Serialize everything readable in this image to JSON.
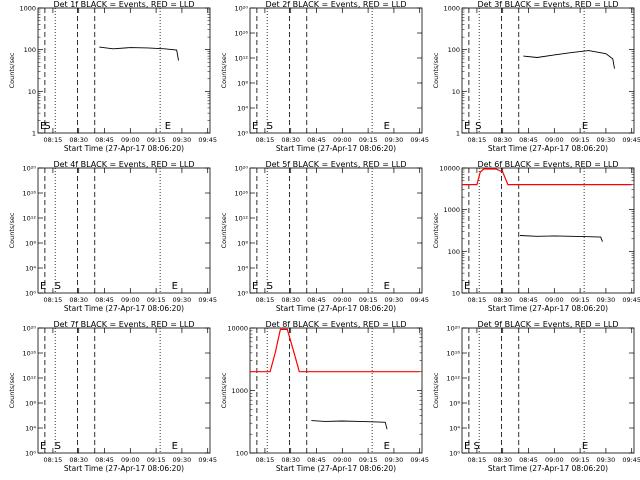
{
  "chart_data": [
    {
      "type": "line",
      "title": "Det 1f BLACK = Events, RED = LLD",
      "ylabel": "Counts/sec",
      "xlabel": "Start Time (27-Apr-17 08:06:20)",
      "x_ticks": [
        "08:15",
        "08:30",
        "08:45",
        "09:00",
        "09:15",
        "09:30",
        "09:45"
      ],
      "y_ticks": [
        "1",
        "10",
        "100",
        "1000"
      ],
      "ylim": [
        1,
        1000
      ],
      "markers": [
        {
          "label": "E",
          "x": "08:06"
        },
        {
          "label": "S",
          "x": "08:10"
        },
        {
          "label": "E",
          "x": "09:20"
        }
      ],
      "series": [
        {
          "color": "#000000",
          "x": [
            "08:42",
            "08:50",
            "09:00",
            "09:10",
            "09:20",
            "09:27",
            "09:28"
          ],
          "values": [
            115,
            105,
            112,
            110,
            105,
            98,
            55
          ]
        }
      ]
    },
    {
      "type": "line",
      "title": "Det 2f BLACK = Events, RED = LLD",
      "ylabel": "Counts/sec",
      "xlabel": "Start Time (27-Apr-17 08:06:20)",
      "x_ticks": [
        "08:15",
        "08:30",
        "08:45",
        "09:00",
        "09:15",
        "09:30",
        "09:45"
      ],
      "y_ticks": [
        "10⁰",
        "10⁴",
        "10⁸",
        "10¹²",
        "10¹⁶",
        "10²⁰"
      ],
      "markers": [
        {
          "label": "E",
          "x": "08:06"
        },
        {
          "label": "S",
          "x": "08:16"
        },
        {
          "label": "E",
          "x": "09:24"
        }
      ],
      "series": []
    },
    {
      "type": "line",
      "title": "Det 3f BLACK = Events, RED = LLD",
      "ylabel": "Counts/sec",
      "xlabel": "Start Time (27-Apr-17 08:06:20)",
      "x_ticks": [
        "08:15",
        "08:30",
        "08:45",
        "09:00",
        "09:15",
        "09:30",
        "09:45"
      ],
      "y_ticks": [
        "1",
        "10",
        "100",
        "1000"
      ],
      "ylim": [
        1,
        1000
      ],
      "markers": [
        {
          "label": "E",
          "x": "08:06"
        },
        {
          "label": "S",
          "x": "08:14"
        },
        {
          "label": "E",
          "x": "09:16"
        }
      ],
      "series": [
        {
          "color": "#000000",
          "x": [
            "08:42",
            "08:50",
            "09:00",
            "09:10",
            "09:20",
            "09:30",
            "09:34",
            "09:35"
          ],
          "values": [
            70,
            65,
            75,
            85,
            95,
            80,
            60,
            35
          ]
        }
      ]
    },
    {
      "type": "line",
      "title": "Det 4f BLACK = Events, RED = LLD",
      "ylabel": "Counts/sec",
      "xlabel": "Start Time (27-Apr-17 08:06:20)",
      "x_ticks": [
        "08:15",
        "08:30",
        "08:45",
        "09:00",
        "09:15",
        "09:30",
        "09:45"
      ],
      "y_ticks": [
        "10⁰",
        "10⁴",
        "10⁸",
        "10¹²",
        "10¹⁶",
        "10²⁰"
      ],
      "markers": [
        {
          "label": "E",
          "x": "08:06"
        },
        {
          "label": "S",
          "x": "08:16"
        },
        {
          "label": "E",
          "x": "09:24"
        }
      ],
      "series": []
    },
    {
      "type": "line",
      "title": "Det 5f BLACK = Events, RED = LLD",
      "ylabel": "Counts/sec",
      "xlabel": "Start Time (27-Apr-17 08:06:20)",
      "x_ticks": [
        "08:15",
        "08:30",
        "08:45",
        "09:00",
        "09:15",
        "09:30",
        "09:45"
      ],
      "y_ticks": [
        "10⁰",
        "10⁴",
        "10⁸",
        "10¹²",
        "10¹⁶",
        "10²⁰"
      ],
      "markers": [
        {
          "label": "E",
          "x": "08:06"
        },
        {
          "label": "S",
          "x": "08:16"
        },
        {
          "label": "E",
          "x": "09:24"
        }
      ],
      "series": []
    },
    {
      "type": "line",
      "title": "Det 6f BLACK = Events, RED = LLD",
      "ylabel": "Counts/sec",
      "xlabel": "Start Time (27-Apr-17 08:06:20)",
      "x_ticks": [
        "08:15",
        "08:30",
        "08:45",
        "09:00",
        "09:15",
        "09:30",
        "09:45"
      ],
      "y_ticks": [
        "10",
        "100",
        "1000",
        "10000"
      ],
      "ylim": [
        10,
        10000
      ],
      "markers": [
        {
          "label": "E",
          "x": "08:06"
        }
      ],
      "series": [
        {
          "color": "#ff0000",
          "x": [
            "08:06",
            "08:15",
            "08:17",
            "08:19",
            "08:22",
            "08:26",
            "08:30",
            "08:33",
            "09:45"
          ],
          "values": [
            4000,
            4000,
            8000,
            9500,
            9500,
            9500,
            8000,
            4000,
            4000
          ]
        },
        {
          "color": "#000000",
          "x": [
            "08:40",
            "08:50",
            "09:00",
            "09:10",
            "09:20",
            "09:27",
            "09:28"
          ],
          "values": [
            240,
            230,
            235,
            230,
            225,
            220,
            170
          ]
        }
      ]
    },
    {
      "type": "line",
      "title": "Det 7f BLACK = Events, RED = LLD",
      "ylabel": "Counts/sec",
      "xlabel": "Start Time (27-Apr-17 08:06:20)",
      "x_ticks": [
        "08:15",
        "08:30",
        "08:45",
        "09:00",
        "09:15",
        "09:30",
        "09:45"
      ],
      "y_ticks": [
        "10⁰",
        "10⁴",
        "10⁸",
        "10¹²",
        "10¹⁶",
        "10²⁰"
      ],
      "markers": [
        {
          "label": "E",
          "x": "08:06"
        },
        {
          "label": "S",
          "x": "08:16"
        },
        {
          "label": "E",
          "x": "09:24"
        }
      ],
      "series": []
    },
    {
      "type": "line",
      "title": "Det 8f BLACK = Events, RED = LLD",
      "ylabel": "Counts/sec",
      "xlabel": "Start Time (27-Apr-17 08:06:20)",
      "x_ticks": [
        "08:15",
        "08:30",
        "08:45",
        "09:00",
        "09:15",
        "09:30",
        "09:45"
      ],
      "y_ticks": [
        "100",
        "1000",
        "10000"
      ],
      "ylim": [
        100,
        10000
      ],
      "markers": [
        {
          "label": "E",
          "x": "09:24"
        }
      ],
      "series": [
        {
          "color": "#ff0000",
          "x": [
            "08:06",
            "08:18",
            "08:21",
            "08:24",
            "08:28",
            "08:32",
            "08:35",
            "09:45"
          ],
          "values": [
            2000,
            2000,
            4000,
            9500,
            9500,
            4000,
            2000,
            2000
          ]
        },
        {
          "color": "#000000",
          "x": [
            "08:42",
            "08:50",
            "09:00",
            "09:10",
            "09:20",
            "09:25",
            "09:26"
          ],
          "values": [
            330,
            320,
            325,
            320,
            315,
            310,
            240
          ]
        }
      ]
    },
    {
      "type": "line",
      "title": "Det 9f BLACK = Events, RED = LLD",
      "ylabel": "Counts/sec",
      "xlabel": "Start Time (27-Apr-17 08:06:20)",
      "x_ticks": [
        "08:15",
        "08:30",
        "08:45",
        "09:00",
        "09:15",
        "09:30",
        "09:45"
      ],
      "y_ticks": [
        "10⁰",
        "10⁴",
        "10⁸",
        "10¹²",
        "10¹⁶",
        "10²⁰"
      ],
      "markers": [
        {
          "label": "E",
          "x": "08:06"
        },
        {
          "label": "S",
          "x": "08:13"
        },
        {
          "label": "E",
          "x": "09:16"
        }
      ],
      "series": []
    }
  ]
}
